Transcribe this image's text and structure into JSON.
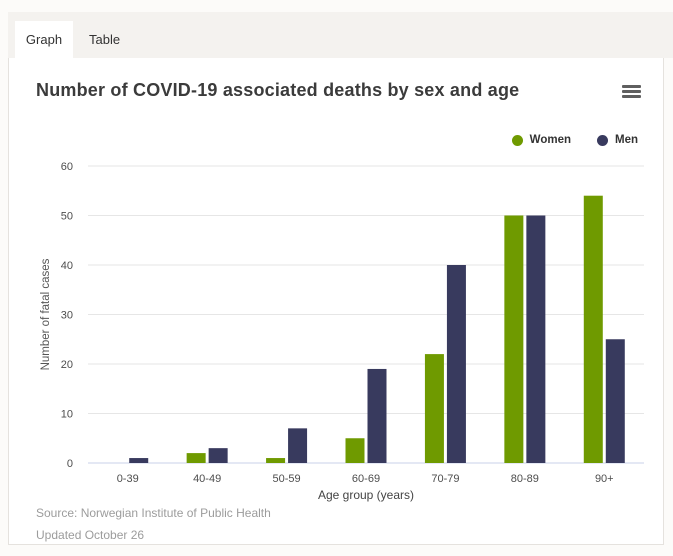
{
  "tabs": {
    "items": [
      {
        "label": "Graph",
        "active": true
      },
      {
        "label": "Table",
        "active": false
      }
    ]
  },
  "header": {
    "title": "Number of COVID-19 associated deaths by sex and age",
    "menu_icon": "hamburger-menu-icon"
  },
  "chart_data": {
    "type": "bar",
    "title": "Number of COVID-19 associated deaths by sex and age",
    "categories": [
      "0-39",
      "40-49",
      "50-59",
      "60-69",
      "70-79",
      "80-89",
      "90+"
    ],
    "series": [
      {
        "name": "Women",
        "color": "#6f9a00",
        "values": [
          0,
          2,
          1,
          5,
          22,
          50,
          54
        ]
      },
      {
        "name": "Men",
        "color": "#383a5e",
        "values": [
          1,
          3,
          7,
          19,
          40,
          50,
          25
        ]
      }
    ],
    "xlabel": "Age group (years)",
    "ylabel": "Number of fatal cases",
    "ylim": [
      0,
      60
    ],
    "yticks": [
      0,
      10,
      20,
      30,
      40,
      50,
      60
    ],
    "grid": true,
    "legend_position": "top-right"
  },
  "footer": {
    "source": "Source: Norwegian Institute of Public Health",
    "updated": "Updated October 26"
  },
  "colors": {
    "tab_bar_bg": "#f4f2ef",
    "panel_border": "#e5e2de",
    "gridline": "#e6e6e6",
    "baseline": "#c9d0e8",
    "tick_text": "#4d4d4d",
    "axis_title_text": "#444444",
    "source_text": "#9c9c9c"
  }
}
